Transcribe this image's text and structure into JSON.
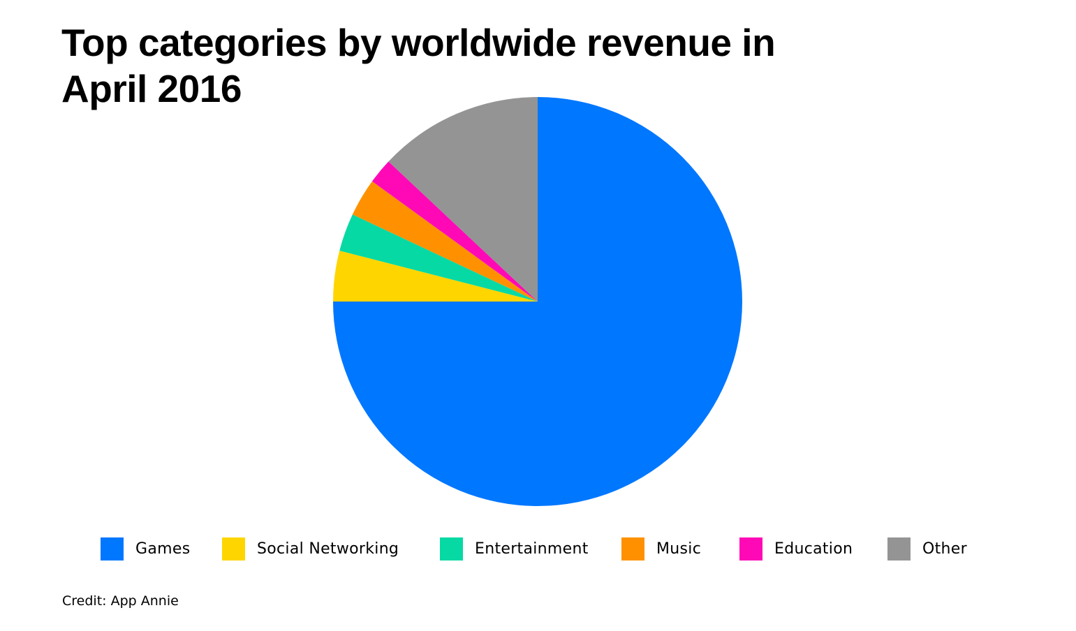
{
  "title": "Top categories by worldwide revenue in April 2016",
  "credit": "Credit: App Annie",
  "chart_data": {
    "type": "pie",
    "title": "Top categories by worldwide revenue in April 2016",
    "legend_position": "bottom",
    "start_angle": "12 o'clock",
    "direction": "clockwise",
    "slices": [
      {
        "label": "Games",
        "value": 75,
        "color": "#0077FF"
      },
      {
        "label": "Social Networking",
        "value": 4,
        "color": "#FFD500"
      },
      {
        "label": "Entertainment",
        "value": 3,
        "color": "#07D9A4"
      },
      {
        "label": "Music",
        "value": 3,
        "color": "#FF9100"
      },
      {
        "label": "Education",
        "value": 2,
        "color": "#FF09B7"
      },
      {
        "label": "Other",
        "value": 13,
        "color": "#949494"
      }
    ]
  }
}
